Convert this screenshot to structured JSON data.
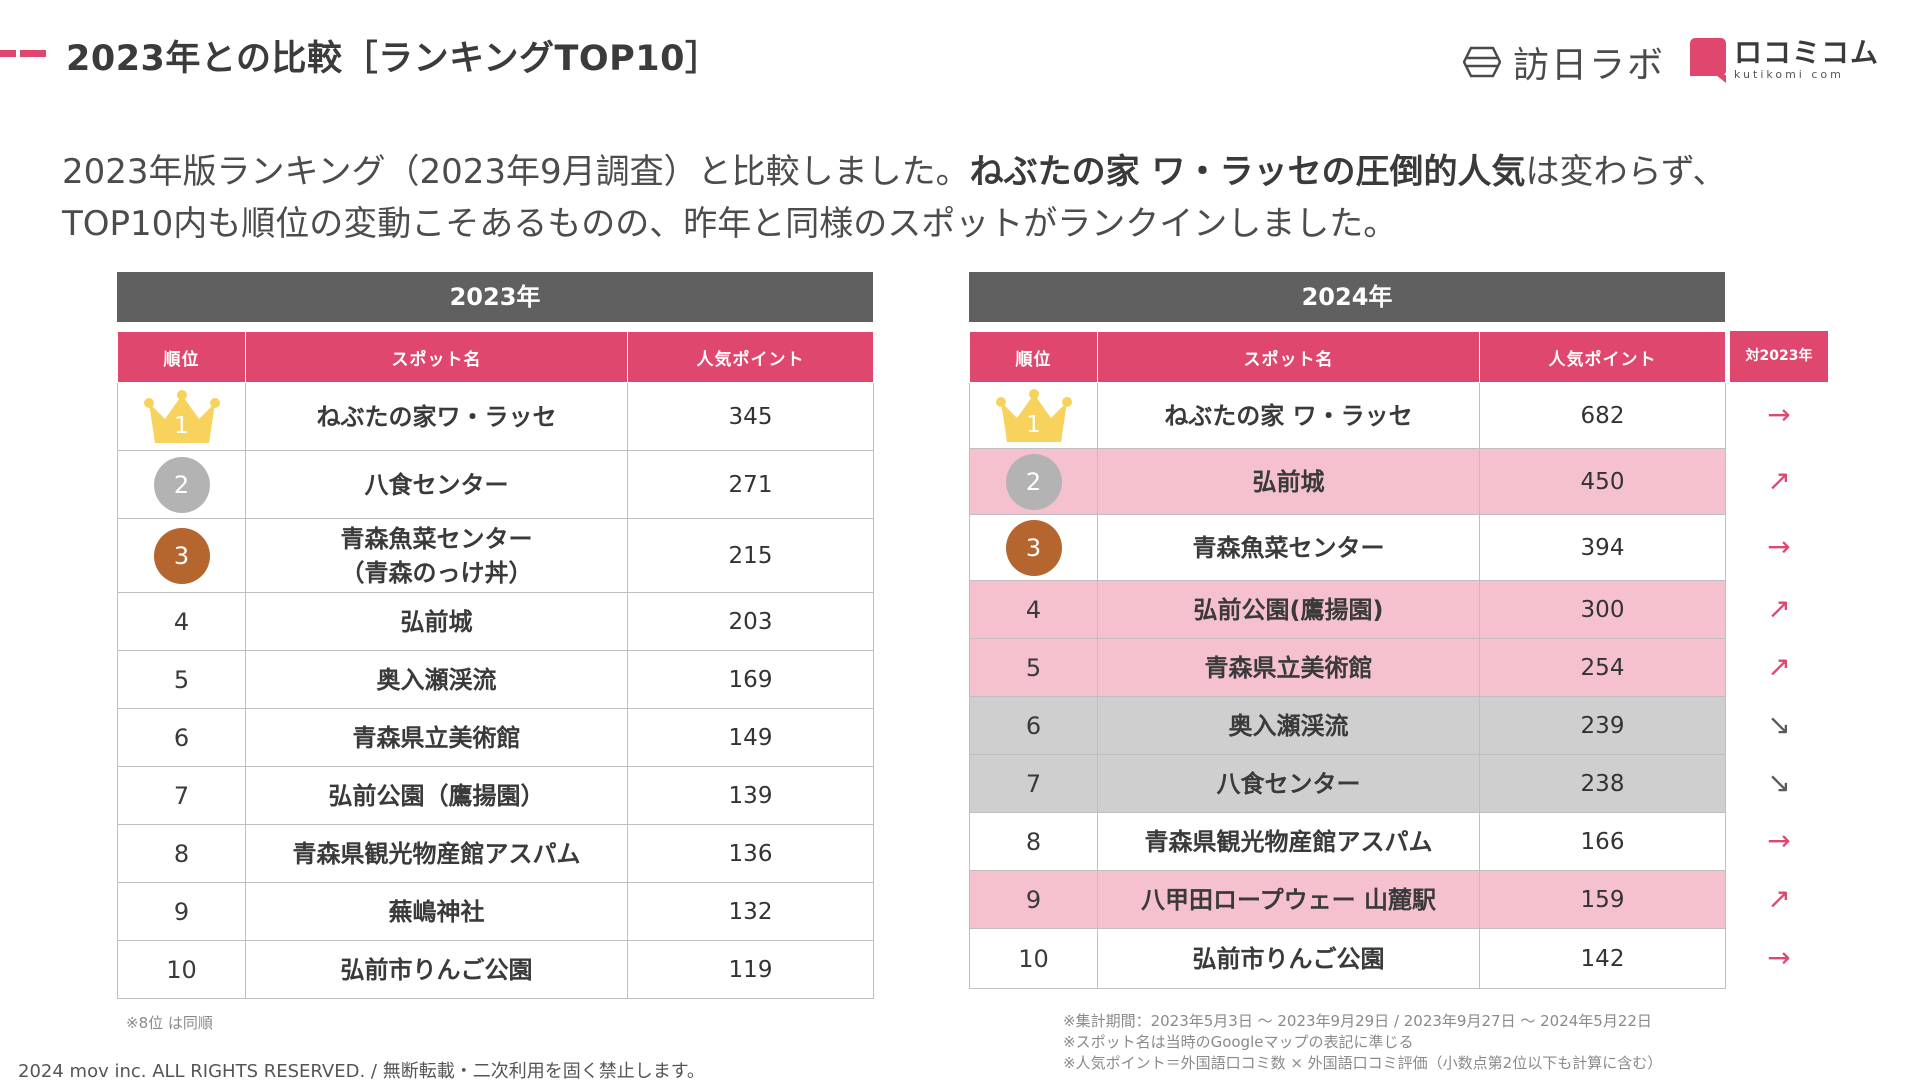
{
  "page_title": "2023年との比較［ランキングTOP10］",
  "logos": {
    "hojin_text": "訪日ラボ",
    "kuchikomi_text": "ロコミコム",
    "kuchikomi_sub": "kutikomi com"
  },
  "lead": {
    "line1_a": "2023年版ランキング（2023年9月調査）と比較しました。",
    "line1_bold": "ねぶたの家 ワ・ラッセの圧倒的人気",
    "line1_b": "は変わらず、",
    "line2": "TOP10内も順位の変動こそあるものの、昨年と同様のスポットがランクインしました。"
  },
  "columns": {
    "rank": "順位",
    "spot": "スポット名",
    "points": "人気ポイント",
    "vs": "対2023年"
  },
  "table_2023": {
    "title": "2023年",
    "rows": [
      {
        "rank": "1",
        "name": "ねぶたの家ワ・ラッセ",
        "points": "345"
      },
      {
        "rank": "2",
        "name": "八食センター",
        "points": "271"
      },
      {
        "rank": "3",
        "name": "青森魚菜センター\n（青森のっけ丼）",
        "points": "215"
      },
      {
        "rank": "4",
        "name": "弘前城",
        "points": "203"
      },
      {
        "rank": "5",
        "name": "奥入瀬渓流",
        "points": "169"
      },
      {
        "rank": "6",
        "name": "青森県立美術館",
        "points": "149"
      },
      {
        "rank": "7",
        "name": "弘前公園（鷹揚園）",
        "points": "139"
      },
      {
        "rank": "8",
        "name": "青森県観光物産館アスパム",
        "points": "136"
      },
      {
        "rank": "9",
        "name": "蕪嶋神社",
        "points": "132"
      },
      {
        "rank": "10",
        "name": "弘前市りんご公園",
        "points": "119"
      }
    ],
    "note": "※8位 は同順"
  },
  "table_2024": {
    "title": "2024年",
    "rows": [
      {
        "rank": "1",
        "name": "ねぶたの家 ワ・ラッセ",
        "points": "682",
        "trend": "→",
        "highlight": "none"
      },
      {
        "rank": "2",
        "name": "弘前城",
        "points": "450",
        "trend": "↗",
        "highlight": "pink"
      },
      {
        "rank": "3",
        "name": "青森魚菜センター",
        "points": "394",
        "trend": "→",
        "highlight": "none"
      },
      {
        "rank": "4",
        "name": "弘前公園(鷹揚園)",
        "points": "300",
        "trend": "↗",
        "highlight": "pink"
      },
      {
        "rank": "5",
        "name": "青森県立美術館",
        "points": "254",
        "trend": "↗",
        "highlight": "pink"
      },
      {
        "rank": "6",
        "name": "奥入瀬渓流",
        "points": "239",
        "trend": "↘",
        "highlight": "gray"
      },
      {
        "rank": "7",
        "name": "八食センター",
        "points": "238",
        "trend": "↘",
        "highlight": "gray"
      },
      {
        "rank": "8",
        "name": "青森県観光物産館アスパム",
        "points": "166",
        "trend": "→",
        "highlight": "none"
      },
      {
        "rank": "9",
        "name": "八甲田ロープウェー 山麓駅",
        "points": "159",
        "trend": "↗",
        "highlight": "pink"
      },
      {
        "rank": "10",
        "name": "弘前市りんご公園",
        "points": "142",
        "trend": "→",
        "highlight": "none"
      }
    ]
  },
  "notes": [
    "※集計期間：2023年5月3日 〜 2023年9月29日 / 2023年9月27日 〜 2024年5月22日",
    "※スポット名は当時のGoogleマップの表記に準じる",
    "※人気ポイント＝外国語口コミ数 × 外国語口コミ評価（小数点第2位以下も計算に含む）"
  ],
  "copyright": "2024 mov inc. ALL RIGHTS RESERVED. / 無断転載・二次利用を固く禁止します。",
  "colors": {
    "accent": "#e0476e",
    "header_gray": "#606060",
    "highlight_pink": "#f5c1cf",
    "highlight_gray": "#cfcfcf",
    "gold": "#f7d25c",
    "silver": "#b3b3b3",
    "bronze": "#b5652e"
  }
}
